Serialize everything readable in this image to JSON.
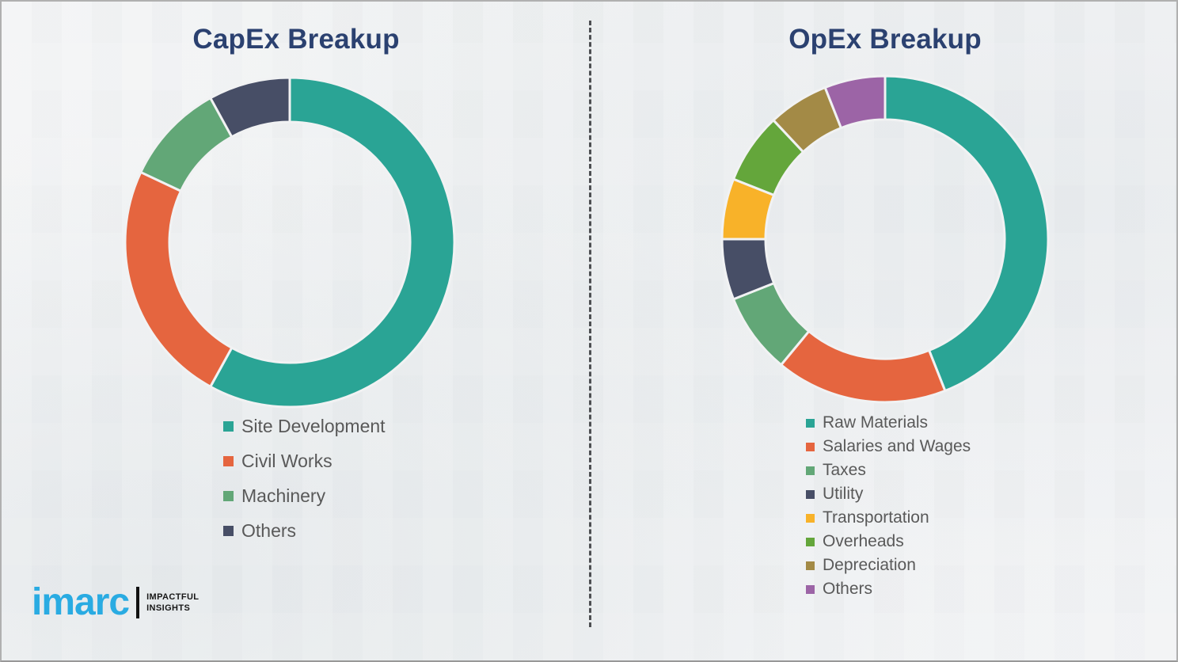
{
  "page": {
    "background_color": "#eff1f2",
    "divider_style": "vertical-dashed",
    "divider_color": "#4d4f52"
  },
  "chart_data": [
    {
      "type": "pie",
      "variant": "donut",
      "title": "CapEx Breakup",
      "title_color": "#2b4170",
      "start_angle_deg": 0,
      "direction": "clockwise",
      "legend_position": "below-left",
      "categories": [
        "Site Development",
        "Civil Works",
        "Machinery",
        "Others"
      ],
      "values": [
        58,
        24,
        10,
        8
      ],
      "colors": [
        "#2aa495",
        "#e5653f",
        "#62a777",
        "#474e66"
      ]
    },
    {
      "type": "pie",
      "variant": "donut",
      "title": "OpEx Breakup",
      "title_color": "#2b4170",
      "start_angle_deg": 0,
      "direction": "clockwise",
      "legend_position": "below-left",
      "categories": [
        "Raw Materials",
        "Salaries and Wages",
        "Taxes",
        "Utility",
        "Transportation",
        "Overheads",
        "Depreciation",
        "Others"
      ],
      "values": [
        44,
        17,
        8,
        6,
        6,
        7,
        6,
        6
      ],
      "colors": [
        "#2aa495",
        "#e5653f",
        "#62a777",
        "#474e66",
        "#f8b229",
        "#64a63b",
        "#a38a46",
        "#9c64a6"
      ]
    }
  ],
  "brand": {
    "logo_text": "imarc",
    "logo_color": "#29abe2",
    "tagline_line1": "IMPACTFUL",
    "tagline_line2": "INSIGHTS"
  }
}
